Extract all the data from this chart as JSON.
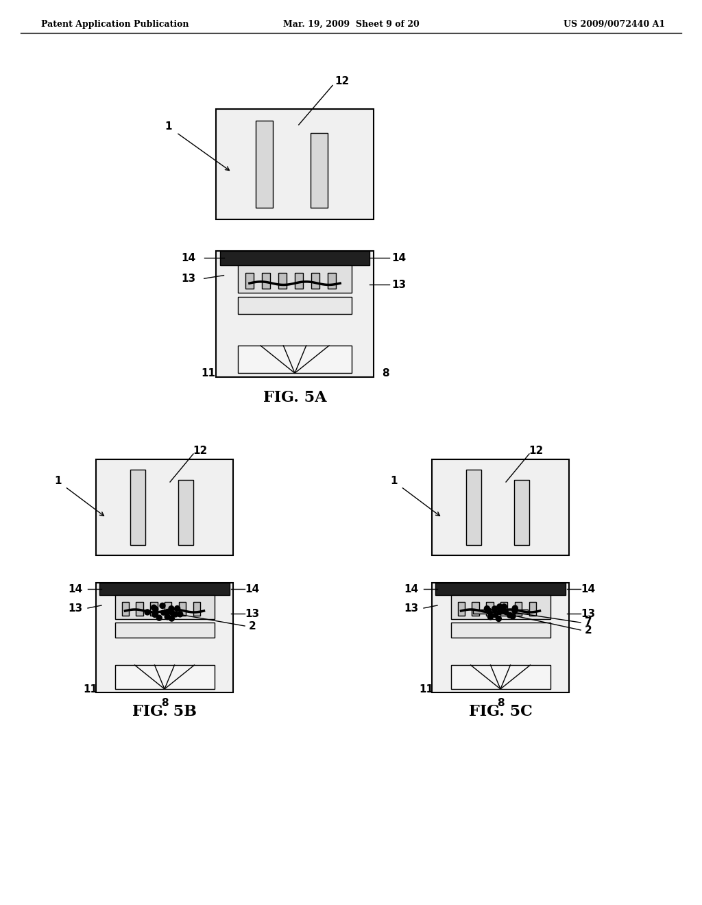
{
  "background_color": "#ffffff",
  "header_left": "Patent Application Publication",
  "header_center": "Mar. 19, 2009  Sheet 9 of 20",
  "header_right": "US 2009/0072440 A1",
  "fig5a_label": "FIG. 5A",
  "fig5b_label": "FIG. 5B",
  "fig5c_label": "FIG. 5C",
  "line_color": "#000000",
  "fill_light": "#e8e8e8",
  "fill_medium": "#c8c8c8",
  "fill_dark": "#404040"
}
